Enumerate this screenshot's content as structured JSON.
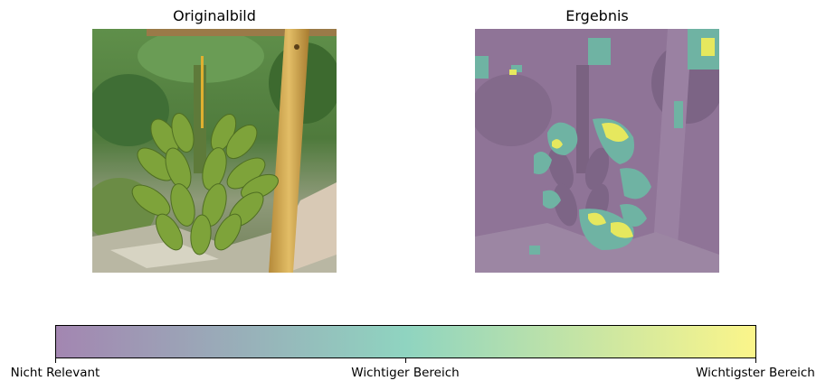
{
  "panels": {
    "left_title": "Originalbild",
    "right_title": "Ergebnis"
  },
  "colorbar": {
    "tick_labels": [
      "Nicht Relevant",
      "Wichtiger Bereich",
      "Wichtigster Bereich"
    ],
    "colors": [
      "#a386b1",
      "#8fd4c0",
      "#fbf58a"
    ]
  }
}
